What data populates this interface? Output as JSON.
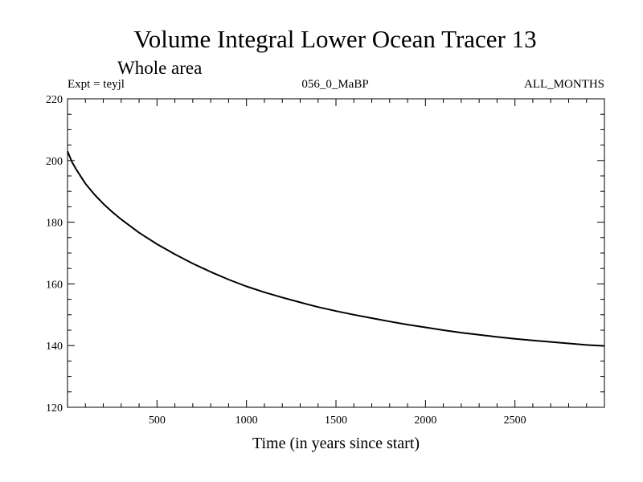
{
  "chart_data": {
    "type": "line",
    "title": "Volume Integral Lower Ocean Tracer 13",
    "subtitle": "Whole area",
    "annotations": {
      "left": "Expt = teyjl",
      "center": "056_0_MaBP",
      "right": "ALL_MONTHS"
    },
    "xlabel": "Time (in years since start)",
    "ylabel": "",
    "xlim": [
      0,
      3000
    ],
    "ylim": [
      120,
      220
    ],
    "xticks": [
      500,
      1000,
      1500,
      2000,
      2500
    ],
    "xtick_labels": [
      "500",
      "1000",
      "1500",
      "2000",
      "2500"
    ],
    "yticks": [
      120,
      140,
      160,
      180,
      200,
      220
    ],
    "ytick_labels": [
      "120",
      "140",
      "160",
      "180",
      "200",
      "220"
    ],
    "grid": false,
    "series": [
      {
        "name": "Volume Integral Lower Ocean Tracer 13",
        "color": "#000000",
        "x": [
          0,
          25,
          50,
          100,
          150,
          200,
          250,
          300,
          400,
          500,
          600,
          700,
          800,
          900,
          1000,
          1100,
          1200,
          1300,
          1400,
          1500,
          1600,
          1700,
          1800,
          1900,
          2000,
          2100,
          2200,
          2300,
          2400,
          2500,
          2600,
          2700,
          2800,
          2900,
          3000
        ],
        "y": [
          203.0,
          199.5,
          197.0,
          192.5,
          189.0,
          186.0,
          183.3,
          180.9,
          176.6,
          172.9,
          169.6,
          166.6,
          163.9,
          161.4,
          159.2,
          157.3,
          155.6,
          154.0,
          152.5,
          151.2,
          150.0,
          148.9,
          147.8,
          146.8,
          145.9,
          145.0,
          144.2,
          143.5,
          142.8,
          142.2,
          141.7,
          141.2,
          140.7,
          140.2,
          139.9
        ]
      }
    ]
  }
}
